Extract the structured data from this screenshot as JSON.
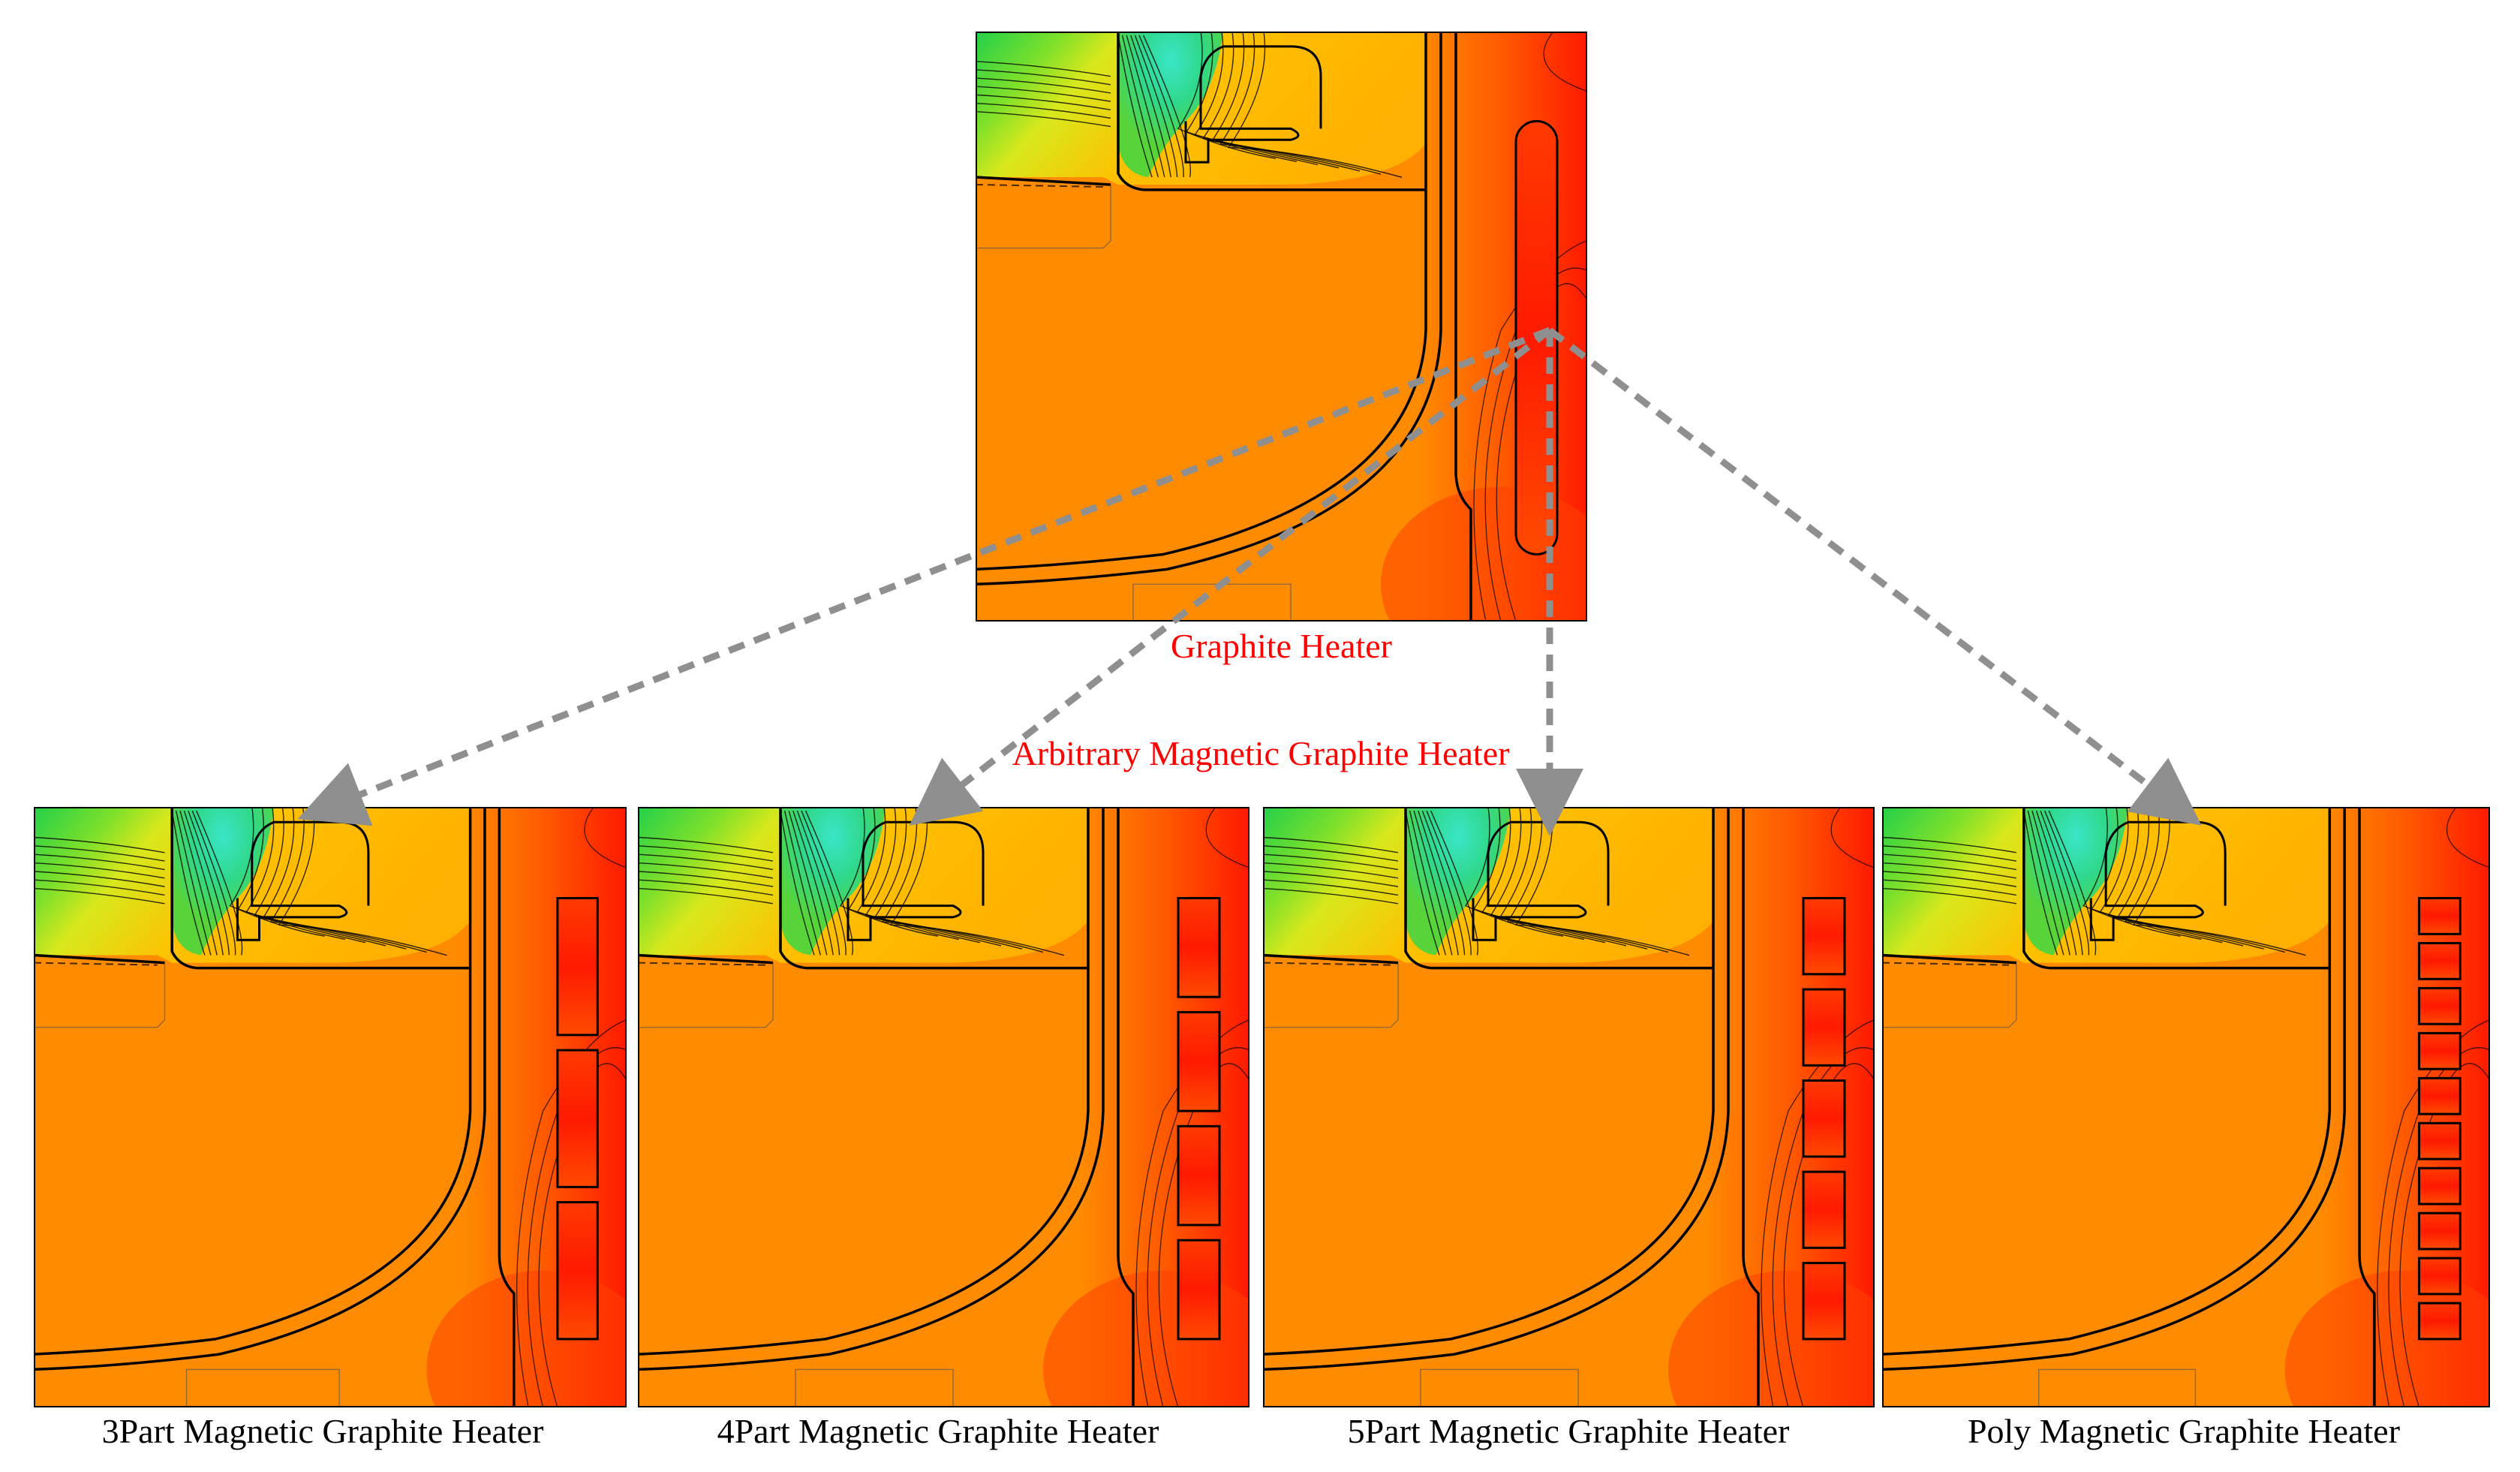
{
  "figure": {
    "top": {
      "caption": "Graphite Heater",
      "heater_type": "single",
      "segments": 1
    },
    "middle_label": "Arbitrary Magnetic Graphite Heater",
    "variants": [
      {
        "caption": "3Part Magnetic  Graphite  Heater",
        "segments": 3
      },
      {
        "caption": "4Part Magnetic  Graphite  Heater",
        "segments": 4
      },
      {
        "caption": "5Part Magnetic  Graphite  Heater",
        "segments": 5
      },
      {
        "caption": "Poly Magnetic  Graphite  Heater",
        "segments": 10
      }
    ],
    "colors": {
      "hot": "#ff1a00",
      "warm": "#ff8c00",
      "mid": "#ffc000",
      "cool_green": "#22d04a",
      "cool_cyan": "#39e6c8",
      "outline": "#000000",
      "arrow": "#8f8f8f",
      "label_red": "#ff0000"
    }
  }
}
